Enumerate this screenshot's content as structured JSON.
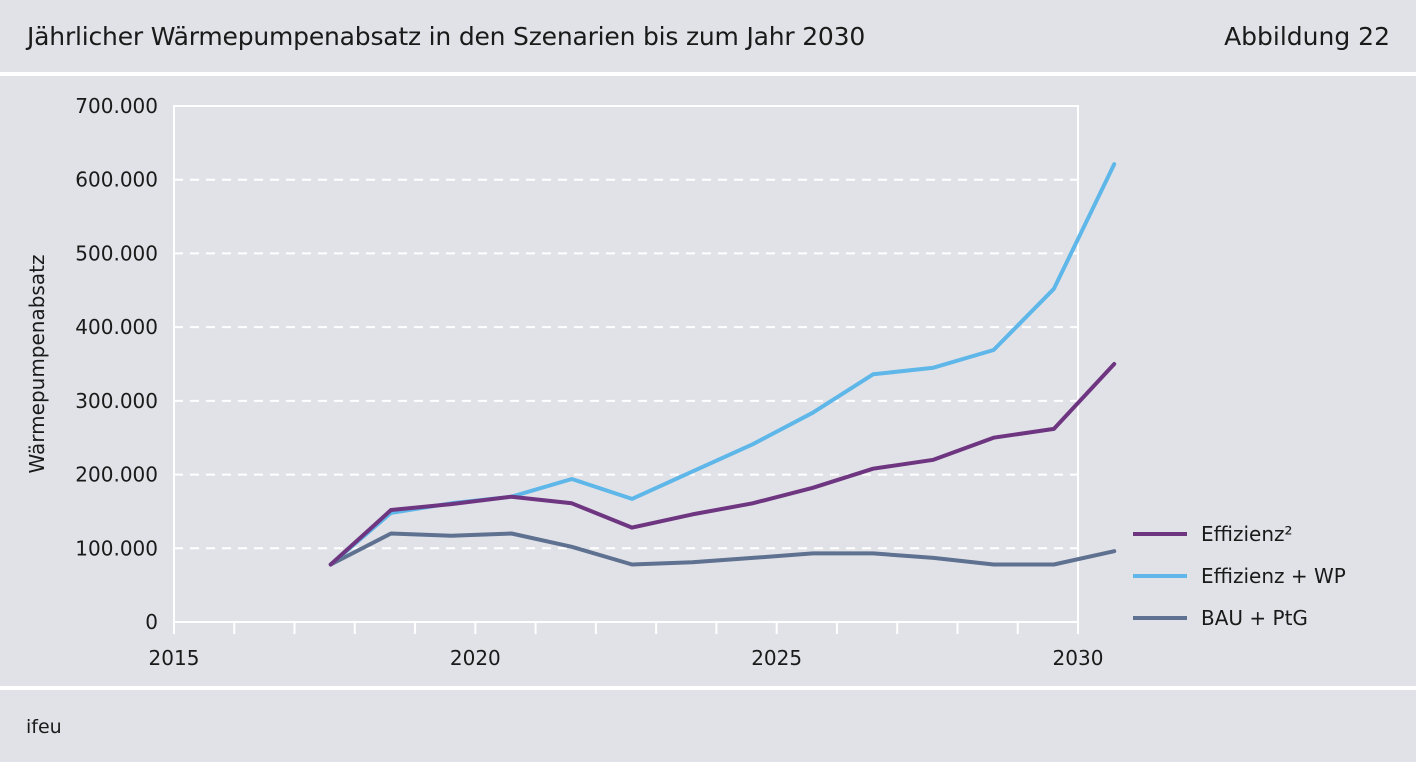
{
  "header": {
    "title": "Jährlicher Wärmepumpenabsatz in den Szenarien bis zum Jahr 2030",
    "figure_label": "Abbildung 22"
  },
  "footer": {
    "source": "ifeu"
  },
  "chart_data": {
    "type": "line",
    "title": "Jährlicher Wärmepumpenabsatz in den Szenarien bis zum Jahr 2030",
    "xlabel": "",
    "ylabel": "Wärmepumpenabsatz",
    "xlim": [
      2015,
      2030
    ],
    "ylim": [
      0,
      700000
    ],
    "x_ticks": [
      2015,
      2020,
      2025,
      2030
    ],
    "x_tick_labels": [
      "2015",
      "2020",
      "2025",
      "2030"
    ],
    "y_ticks": [
      0,
      100000,
      200000,
      300000,
      400000,
      500000,
      600000,
      700000
    ],
    "y_tick_labels": [
      "0",
      "100.000",
      "200.000",
      "300.000",
      "400.000",
      "500.000",
      "600.000",
      "700.000"
    ],
    "grid": "horizontal dashed",
    "legend_position": "right",
    "x": [
      2017.6,
      2018.6,
      2019.6,
      2020.6,
      2021.6,
      2022.6,
      2023.6,
      2024.6,
      2025.6,
      2026.6,
      2027.6,
      2028.6,
      2029.6,
      2030.6
    ],
    "series": [
      {
        "name": "Effizienz²",
        "color": "#6e3580",
        "values": [
          78000,
          152000,
          160000,
          170000,
          161000,
          128000,
          146000,
          161000,
          182000,
          208000,
          220000,
          250000,
          262000,
          350000
        ]
      },
      {
        "name": "Effizienz + WP",
        "color": "#5eb7e8",
        "values": [
          78000,
          148000,
          161000,
          170000,
          194000,
          167000,
          204000,
          241000,
          284000,
          336000,
          345000,
          369000,
          452000,
          621000
        ]
      },
      {
        "name": "BAU + PtG",
        "color": "#5f7190",
        "values": [
          78000,
          120000,
          117000,
          120000,
          102000,
          78000,
          81000,
          87000,
          93000,
          93000,
          87000,
          78000,
          78000,
          96000
        ]
      }
    ]
  }
}
